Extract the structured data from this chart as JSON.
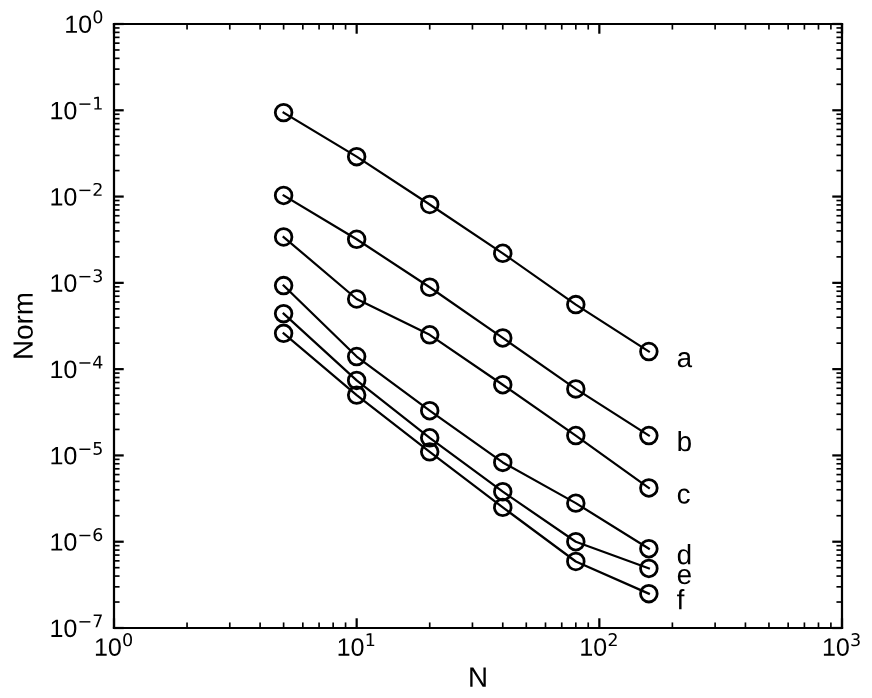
{
  "chart_data": {
    "type": "line",
    "xlabel": "N",
    "ylabel": "Norm",
    "log": "xy",
    "marker": "circle",
    "line_style": "solid",
    "grid": false,
    "legend": false,
    "x": [
      5,
      10,
      20,
      40,
      80,
      160
    ],
    "xlim": [
      1,
      1000
    ],
    "xticks": [
      {
        "value": 1,
        "label": "10$^{0}$"
      },
      {
        "value": 10,
        "label": "10$^{1}$"
      },
      {
        "value": 100,
        "label": "10$^{2}$"
      },
      {
        "value": 1000,
        "label": "10$^{3}$"
      }
    ],
    "ylim": [
      1e-07,
      1
    ],
    "yticks": [
      {
        "value": 1e-07,
        "label": "10$^{−7}$"
      },
      {
        "value": 1e-06,
        "label": "10$^{−6}$"
      },
      {
        "value": 1e-05,
        "label": "10$^{−5}$"
      },
      {
        "value": 0.0001,
        "label": "10$^{−4}$"
      },
      {
        "value": 0.001,
        "label": "10$^{−3}$"
      },
      {
        "value": 0.01,
        "label": "10$^{−2}$"
      },
      {
        "value": 0.1,
        "label": "10$^{−1}$"
      },
      {
        "value": 1,
        "label": "10$^{0}$"
      }
    ],
    "series": [
      {
        "name": "a",
        "color": "#000000",
        "values": [
          0.094,
          0.029,
          0.0081,
          0.0022,
          0.00056,
          0.00016
        ]
      },
      {
        "name": "b",
        "color": "#000000",
        "values": [
          0.0103,
          0.0032,
          0.00089,
          0.00023,
          5.9e-05,
          1.7e-05
        ]
      },
      {
        "name": "c",
        "color": "#000000",
        "values": [
          0.0034,
          0.00065,
          0.00025,
          6.6e-05,
          1.7e-05,
          4.2e-06
        ]
      },
      {
        "name": "d",
        "color": "#000000",
        "values": [
          0.00093,
          0.00014,
          3.3e-05,
          8.3e-06,
          2.8e-06,
          8.3e-07
        ]
      },
      {
        "name": "e",
        "color": "#000000",
        "values": [
          0.00044,
          7.4e-05,
          1.6e-05,
          3.8e-06,
          1e-06,
          4.9e-07
        ]
      },
      {
        "name": "f",
        "color": "#000000",
        "values": [
          0.00026,
          5e-05,
          1.1e-05,
          2.5e-06,
          5.9e-07,
          2.5e-07
        ]
      }
    ]
  }
}
